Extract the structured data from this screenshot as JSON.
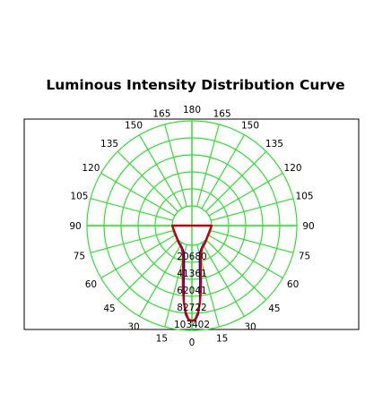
{
  "page": {
    "title": "Luminous Intensity Distribution Curve"
  },
  "chart_data": {
    "type": "polar",
    "title": "Luminous Intensity Distribution Curve",
    "angle_labels": [
      {
        "deg": 0,
        "label": "0"
      },
      {
        "deg": 15,
        "label": "15"
      },
      {
        "deg": -15,
        "label": "15"
      },
      {
        "deg": 30,
        "label": "30"
      },
      {
        "deg": -30,
        "label": "30"
      },
      {
        "deg": 45,
        "label": "45"
      },
      {
        "deg": -45,
        "label": "45"
      },
      {
        "deg": 60,
        "label": "60"
      },
      {
        "deg": -60,
        "label": "60"
      },
      {
        "deg": 75,
        "label": "75"
      },
      {
        "deg": -75,
        "label": "75"
      },
      {
        "deg": 90,
        "label": "90"
      },
      {
        "deg": -90,
        "label": "90"
      },
      {
        "deg": 105,
        "label": "105"
      },
      {
        "deg": -105,
        "label": "105"
      },
      {
        "deg": 120,
        "label": "120"
      },
      {
        "deg": -120,
        "label": "120"
      },
      {
        "deg": 135,
        "label": "135"
      },
      {
        "deg": -135,
        "label": "135"
      },
      {
        "deg": 150,
        "label": "150"
      },
      {
        "deg": -150,
        "label": "150"
      },
      {
        "deg": 165,
        "label": "165"
      },
      {
        "deg": -165,
        "label": "165"
      },
      {
        "deg": 180,
        "label": "180"
      }
    ],
    "radial_ticks": [
      {
        "value": 20680,
        "label": "20680"
      },
      {
        "value": 41361,
        "label": "41361"
      },
      {
        "value": 62041,
        "label": "62041"
      },
      {
        "value": 82722,
        "label": "82722"
      },
      {
        "value": 103402,
        "label": "103402"
      }
    ],
    "r_max": 103402,
    "grid": true,
    "colors": {
      "grid": "#33dd33",
      "series_a": "#0000cc",
      "series_b": "#cc0000"
    },
    "series": [
      {
        "color": "#0000cc",
        "points": [
          {
            "angle": 0,
            "value": 92000
          },
          {
            "angle": 2,
            "value": 91000
          },
          {
            "angle": 4,
            "value": 84000
          },
          {
            "angle": 6,
            "value": 69000
          },
          {
            "angle": 8,
            "value": 48000
          },
          {
            "angle": 10,
            "value": 31000
          },
          {
            "angle": 13,
            "value": 18000
          },
          {
            "angle": 17,
            "value": 10000
          },
          {
            "angle": 25,
            "value": 5000
          },
          {
            "angle": 40,
            "value": 1500
          },
          {
            "angle": 90,
            "value": 0
          },
          {
            "angle": -90,
            "value": 0
          },
          {
            "angle": -40,
            "value": 1500
          },
          {
            "angle": -25,
            "value": 5000
          },
          {
            "angle": -17,
            "value": 10000
          },
          {
            "angle": -13,
            "value": 18000
          },
          {
            "angle": -10,
            "value": 31000
          },
          {
            "angle": -8,
            "value": 48000
          },
          {
            "angle": -6,
            "value": 69000
          },
          {
            "angle": -4,
            "value": 84000
          },
          {
            "angle": -2,
            "value": 91000
          }
        ]
      },
      {
        "color": "#cc0000",
        "points": [
          {
            "angle": 0,
            "value": 92000
          },
          {
            "angle": 2,
            "value": 90000
          },
          {
            "angle": 4,
            "value": 82000
          },
          {
            "angle": 6,
            "value": 70000
          },
          {
            "angle": 8,
            "value": 55000
          },
          {
            "angle": 10,
            "value": 40000
          },
          {
            "angle": 13,
            "value": 24000
          },
          {
            "angle": 17,
            "value": 13000
          },
          {
            "angle": 25,
            "value": 6000
          },
          {
            "angle": 40,
            "value": 2000
          },
          {
            "angle": 90,
            "value": 0
          },
          {
            "angle": -90,
            "value": 0
          },
          {
            "angle": -40,
            "value": 2000
          },
          {
            "angle": -25,
            "value": 6000
          },
          {
            "angle": -17,
            "value": 13000
          },
          {
            "angle": -13,
            "value": 24000
          },
          {
            "angle": -10,
            "value": 40000
          },
          {
            "angle": -8,
            "value": 55000
          },
          {
            "angle": -6,
            "value": 70000
          },
          {
            "angle": -4,
            "value": 82000
          },
          {
            "angle": -2,
            "value": 90000
          }
        ]
      }
    ]
  }
}
